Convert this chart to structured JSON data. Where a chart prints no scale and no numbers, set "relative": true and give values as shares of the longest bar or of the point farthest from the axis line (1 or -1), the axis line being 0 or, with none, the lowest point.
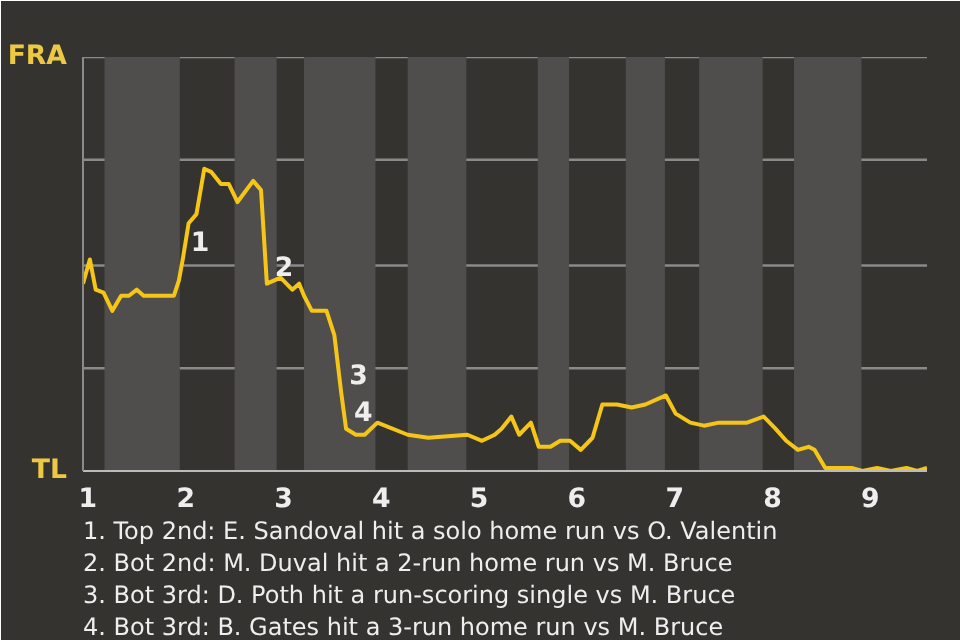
{
  "chart_data": {
    "type": "line",
    "x": [
      0.95,
      1.02,
      1.08,
      1.16,
      1.25,
      1.34,
      1.42,
      1.5,
      1.57,
      1.88,
      1.93,
      1.97,
      2.03,
      2.11,
      2.19,
      2.26,
      2.36,
      2.44,
      2.53,
      2.69,
      2.77,
      2.83,
      2.97,
      3.09,
      3.16,
      3.21,
      3.29,
      3.44,
      3.52,
      3.59,
      3.64,
      3.74,
      3.83,
      3.96,
      4.27,
      4.48,
      4.88,
      5.03,
      5.16,
      5.23,
      5.33,
      5.41,
      5.53,
      5.61,
      5.73,
      5.83,
      5.93,
      6.04,
      6.16,
      6.26,
      6.41,
      6.56,
      6.7,
      6.91,
      7.01,
      7.16,
      7.3,
      7.45,
      7.58,
      7.74,
      7.91,
      8.03,
      8.14,
      8.26,
      8.37,
      8.43,
      8.54,
      8.81,
      8.92,
      9.07,
      9.21,
      9.37,
      9.48,
      9.58
    ],
    "relative": true,
    "series": [
      {
        "color": "#f5c518",
        "values": [
          0.62,
          0.7,
          0.6,
          0.59,
          0.53,
          0.58,
          0.58,
          0.6,
          0.58,
          0.58,
          0.63,
          0.7,
          0.82,
          0.85,
          1,
          0.99,
          0.95,
          0.95,
          0.89,
          0.96,
          0.93,
          0.62,
          0.64,
          0.6,
          0.62,
          0.58,
          0.53,
          0.53,
          0.45,
          0.26,
          0.14,
          0.12,
          0.12,
          0.16,
          0.12,
          0.11,
          0.12,
          0.1,
          0.12,
          0.14,
          0.18,
          0.12,
          0.16,
          0.08,
          0.08,
          0.1,
          0.1,
          0.07,
          0.11,
          0.22,
          0.22,
          0.21,
          0.22,
          0.25,
          0.19,
          0.16,
          0.15,
          0.16,
          0.16,
          0.16,
          0.18,
          0.14,
          0.1,
          0.07,
          0.08,
          0.07,
          0.01,
          0.01,
          0,
          0.01,
          0,
          0.01,
          0,
          0.01
        ]
      }
    ],
    "xlim": [
      0.95,
      9.58
    ],
    "xticks": [
      1,
      2,
      3,
      4,
      5,
      6,
      7,
      8,
      9
    ],
    "marker": "none",
    "line_style": "solid",
    "ref_lines": [
      {
        "axis": "y",
        "value": 0.34,
        "color": "#8a8a8a"
      },
      {
        "axis": "y",
        "value": 0.68,
        "color": "#8a8a8a"
      },
      {
        "axis": "y",
        "value": 1.03,
        "color": "#8a8a8a"
      },
      {
        "axis": "y",
        "value": 1.37,
        "color": "#8a8a8a"
      }
    ],
    "bands": [
      {
        "axis": "x",
        "from": 1.17,
        "to": 1.94,
        "color": "#4f4e4c"
      },
      {
        "axis": "x",
        "from": 2.5,
        "to": 2.93,
        "color": "#4f4e4c"
      },
      {
        "axis": "x",
        "from": 3.21,
        "to": 3.94,
        "color": "#4f4e4c"
      },
      {
        "axis": "x",
        "from": 4.27,
        "to": 4.87,
        "color": "#4f4e4c"
      },
      {
        "axis": "x",
        "from": 5.6,
        "to": 5.92,
        "color": "#4f4e4c"
      },
      {
        "axis": "x",
        "from": 6.5,
        "to": 6.9,
        "color": "#4f4e4c"
      },
      {
        "axis": "x",
        "from": 7.25,
        "to": 7.9,
        "color": "#4f4e4c"
      },
      {
        "axis": "x",
        "from": 8.22,
        "to": 8.91,
        "color": "#4f4e4c"
      }
    ],
    "annotations": [
      "FRA",
      "TL",
      {
        "text": "1",
        "x": 1.97,
        "y": 0.7
      },
      {
        "text": "2",
        "x": 2.83,
        "y": 0.62
      },
      {
        "text": "3",
        "x": 3.59,
        "y": 0.26
      },
      {
        "text": "4",
        "x": 3.64,
        "y": 0.14
      },
      "1. Top 2nd: E. Sandoval hit a solo home run vs O. Valentin",
      "2. Bot 2nd: M. Duval hit a 2-run home run vs M. Bruce",
      "3. Bot 3rd: D. Poth hit a run-scoring single vs M. Bruce",
      "4. Bot 3rd: B. Gates hit a 3-run home run vs M. Bruce"
    ]
  }
}
